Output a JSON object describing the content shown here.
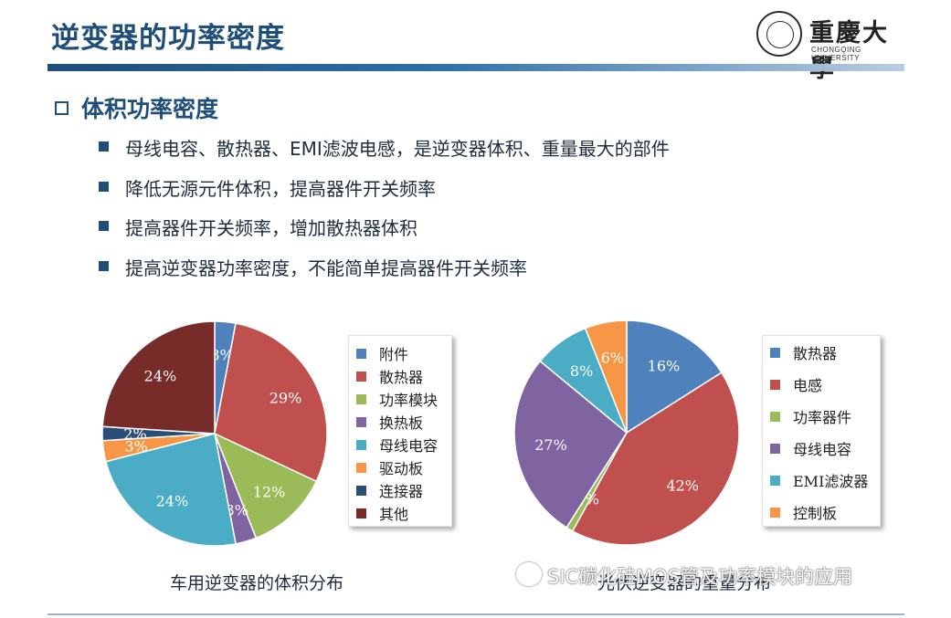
{
  "page": {
    "title": "逆变器的功率密度",
    "logo": {
      "cn": "重慶大學",
      "en": "CHONGQING UNIVERSITY"
    },
    "section": "体积功率密度",
    "bullets": [
      "母线电容、散热器、EMI滤波电感，是逆变器体积、重量最大的部件",
      "降低无源元件体积，提高器件开关频率",
      "提高器件开关频率，增加散热器体积",
      "提高逆变器功率密度，不能简单提高器件开关频率"
    ],
    "watermark": "SIC碳化硅MOS管及功率模块的应用"
  },
  "chart_data": [
    {
      "type": "pie",
      "title": "车用逆变器的体积分布",
      "labels": [
        "附件",
        "散热器",
        "功率模块",
        "换热板",
        "母线电容",
        "驱动板",
        "连接器",
        "其他"
      ],
      "values": [
        3,
        29,
        12,
        3,
        24,
        3,
        2,
        24
      ],
      "value_labels": [
        "3%",
        "29%",
        "12%",
        "3%",
        "24%",
        "3%",
        "2%",
        "24%"
      ],
      "colors": [
        "#4f81bd",
        "#c0504d",
        "#9bbb59",
        "#8064a2",
        "#4bacc6",
        "#f79646",
        "#2c4d75",
        "#772c2a"
      ],
      "legend": "right"
    },
    {
      "type": "pie",
      "title": "光伏逆变器的重量分布",
      "labels": [
        "散热器",
        "电感",
        "功率器件",
        "母线电容",
        "EMI滤波器",
        "控制板"
      ],
      "values": [
        16,
        42,
        1,
        27,
        8,
        6
      ],
      "value_labels": [
        "16%",
        "42%",
        "1%",
        "27%",
        "8%",
        "6%"
      ],
      "colors": [
        "#4f81bd",
        "#c0504d",
        "#9bbb59",
        "#8064a2",
        "#4bacc6",
        "#f79646"
      ],
      "legend": "right"
    }
  ]
}
